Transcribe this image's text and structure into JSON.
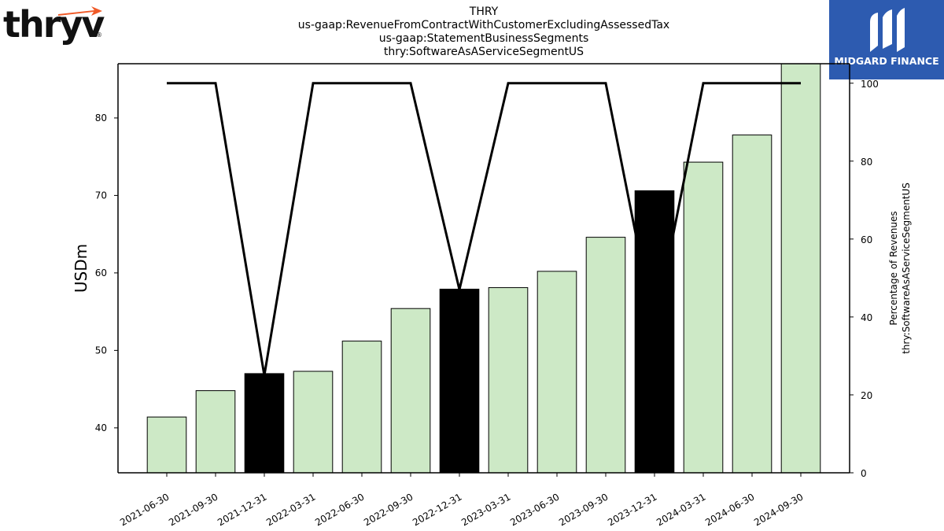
{
  "logos": {
    "left_text": "thryv",
    "left_reg": "®",
    "right_text": "MIDGARD FINANCE"
  },
  "colors": {
    "bar_fill": "#cde9c6",
    "bar_highlight": "#000000",
    "line": "#000000",
    "brand_blue": "#2d5bb0",
    "logo_accent": "#f05a28"
  },
  "chart_data": {
    "type": "bar",
    "title_lines": [
      "THRY",
      "us-gaap:RevenueFromContractWithCustomerExcludingAssessedTax",
      "us-gaap:StatementBusinessSegments",
      "thry:SoftwareAsAServiceSegmentUS"
    ],
    "categories": [
      "2021-06-30",
      "2021-09-30",
      "2021-12-31",
      "2022-03-31",
      "2022-06-30",
      "2022-09-30",
      "2022-12-31",
      "2023-03-31",
      "2023-06-30",
      "2023-09-30",
      "2023-12-31",
      "2024-03-31",
      "2024-06-30",
      "2024-09-30"
    ],
    "values": [
      41.4,
      44.8,
      47.0,
      47.3,
      51.2,
      55.4,
      57.9,
      58.1,
      60.2,
      64.6,
      70.6,
      74.3,
      77.8,
      87.5
    ],
    "highlight": [
      false,
      false,
      true,
      false,
      false,
      false,
      true,
      false,
      false,
      false,
      true,
      false,
      false,
      false
    ],
    "ylabel": "USDm",
    "ylim": [
      34.2,
      87.0
    ],
    "yticks": [
      40,
      50,
      60,
      70,
      80
    ],
    "y2label_lines": [
      "Percentage of Revenues",
      "thry:SoftwareAsAServiceSegmentUS"
    ],
    "y2lim": [
      0,
      105
    ],
    "y2ticks": [
      0,
      20,
      40,
      60,
      80,
      100
    ],
    "series2": {
      "type": "line",
      "values": [
        100,
        100,
        25,
        100,
        100,
        100,
        47,
        100,
        100,
        100,
        37,
        100,
        100,
        100
      ]
    },
    "grid": false
  }
}
